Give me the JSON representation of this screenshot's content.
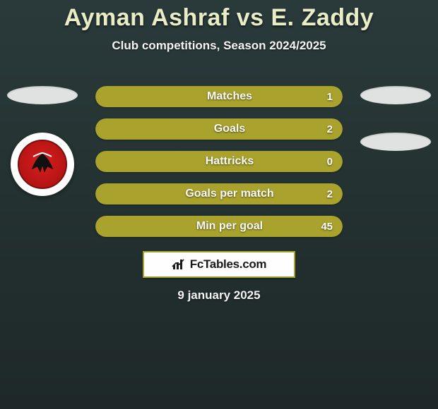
{
  "title": {
    "main": "Ayman Ashraf vs E. Zaddy",
    "sub": "Club competitions, Season 2024/2025"
  },
  "stats": {
    "bar_fill_color": "#a9a22c",
    "bar_bg_color": "#4a4a3a",
    "rows": [
      {
        "key": "matches",
        "label": "Matches",
        "value": "1",
        "fill_pct": 100
      },
      {
        "key": "goals",
        "label": "Goals",
        "value": "2",
        "fill_pct": 100
      },
      {
        "key": "hattricks",
        "label": "Hattricks",
        "value": "0",
        "fill_pct": 100
      },
      {
        "key": "goals_per_match",
        "label": "Goals per match",
        "value": "2",
        "fill_pct": 100
      },
      {
        "key": "min_per_goal",
        "label": "Min per goal",
        "value": "45",
        "fill_pct": 100
      }
    ]
  },
  "brand": {
    "icon": "bar-chart-icon",
    "text": "FcTables.com"
  },
  "date": "9 january 2025",
  "left_player": {
    "placeholder_color": "#dfe2e0",
    "club_logo": {
      "outer": "#ffffff",
      "inner": "#c81818",
      "icon": "eagle"
    }
  },
  "right_player": {
    "placeholder_color": "#dfe2e0"
  },
  "colors": {
    "bg_top": "#2a3a3a",
    "bg_bottom": "#1e2828",
    "title_color": "#e8edc8"
  }
}
